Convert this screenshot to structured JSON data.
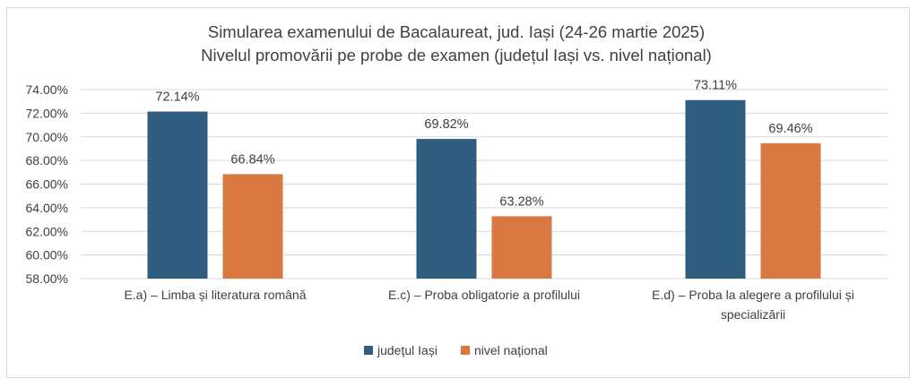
{
  "chart_data": {
    "type": "bar",
    "title": [
      "Simularea examenului de Bacalaureat, jud. Iași (24-26 martie 2025)",
      "Nivelul promovării pe probe de examen (județul Iași vs. nivel național)"
    ],
    "categories": [
      [
        "E.a) – Limba și literatura română"
      ],
      [
        "E.c) – Proba obligatorie a profilului"
      ],
      [
        "E.d) – Proba la alegere a profilului și",
        "specializării"
      ]
    ],
    "series": [
      {
        "name": "județul Iași",
        "color": "#2e5d80",
        "values": [
          72.14,
          69.82,
          73.11
        ],
        "labels": [
          "72.14%",
          "69.82%",
          "73.11%"
        ]
      },
      {
        "name": "nivel național",
        "color": "#d97840",
        "values": [
          66.84,
          63.28,
          69.46
        ],
        "labels": [
          "66.84%",
          "63.28%",
          "69.46%"
        ]
      }
    ],
    "ylim": [
      58,
      74
    ],
    "yticks": [
      58,
      60,
      62,
      64,
      66,
      68,
      70,
      72,
      74
    ],
    "ytick_labels": [
      "58.00%",
      "60.00%",
      "62.00%",
      "64.00%",
      "66.00%",
      "68.00%",
      "70.00%",
      "72.00%",
      "74.00%"
    ],
    "grid": true,
    "legend_position": "bottom",
    "gridline_color": "#d9d9d9"
  }
}
